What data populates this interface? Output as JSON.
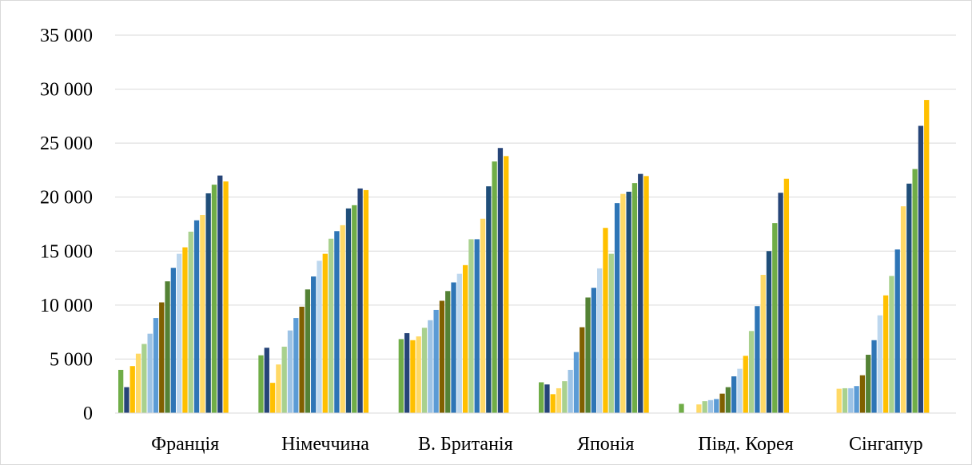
{
  "chart_data": {
    "type": "bar",
    "categories": [
      "Франція",
      "Німеччина",
      "В. Британія",
      "Японія",
      "Півд. Корея",
      "Сінгапур"
    ],
    "ylim": [
      0,
      35000
    ],
    "yticks": [
      0,
      5000,
      10000,
      15000,
      20000,
      25000,
      30000,
      35000
    ],
    "ytick_labels": [
      "0",
      "5 000",
      "10 000",
      "15 000",
      "20 000",
      "25 000",
      "30 000",
      "35 000"
    ],
    "grid": true,
    "legend": "none",
    "series_colors": [
      "#70ad47",
      "#264478",
      "#ffc000",
      "#ffd966",
      "#a9d18e",
      "#9dc3e6",
      "#5b9bd5",
      "#806000",
      "#548235",
      "#2e75b6",
      "#bdd7ee",
      "#ffc000",
      "#a9d18e",
      "#2e75b6",
      "#ffd966",
      "#1f4e79"
    ],
    "values": [
      [
        4000,
        2400,
        4350,
        5500,
        6400,
        7350,
        8800,
        10250,
        12200,
        13450,
        14750,
        15350,
        16800,
        17850,
        18350,
        20350,
        21150,
        22000,
        21450
      ],
      [
        5350,
        6050,
        2800,
        4500,
        6150,
        7650,
        8800,
        9850,
        11450,
        12650,
        14100,
        14750,
        16150,
        16850,
        17400,
        18950,
        19250,
        20800,
        20650
      ],
      [
        6850,
        7400,
        6750,
        7100,
        7900,
        8600,
        9550,
        10400,
        11300,
        12100,
        12900,
        13700,
        16100,
        16100,
        18000,
        21000,
        23300,
        24550,
        23800
      ],
      [
        2850,
        2650,
        1750,
        2300,
        2950,
        4000,
        5650,
        7950,
        10700,
        11600,
        13400,
        17150,
        14750,
        19450,
        20300,
        20500,
        21300,
        22150,
        21950
      ],
      [
        850,
        0,
        0,
        800,
        1100,
        1200,
        1300,
        1800,
        2400,
        3400,
        4100,
        5300,
        7600,
        9900,
        12800,
        15000,
        17600,
        20400,
        21700
      ],
      [
        0,
        0,
        0,
        2250,
        2300,
        2300,
        2500,
        3500,
        5400,
        6750,
        9050,
        10900,
        12700,
        15150,
        19150,
        21250,
        22600,
        26600,
        29000
      ]
    ]
  }
}
